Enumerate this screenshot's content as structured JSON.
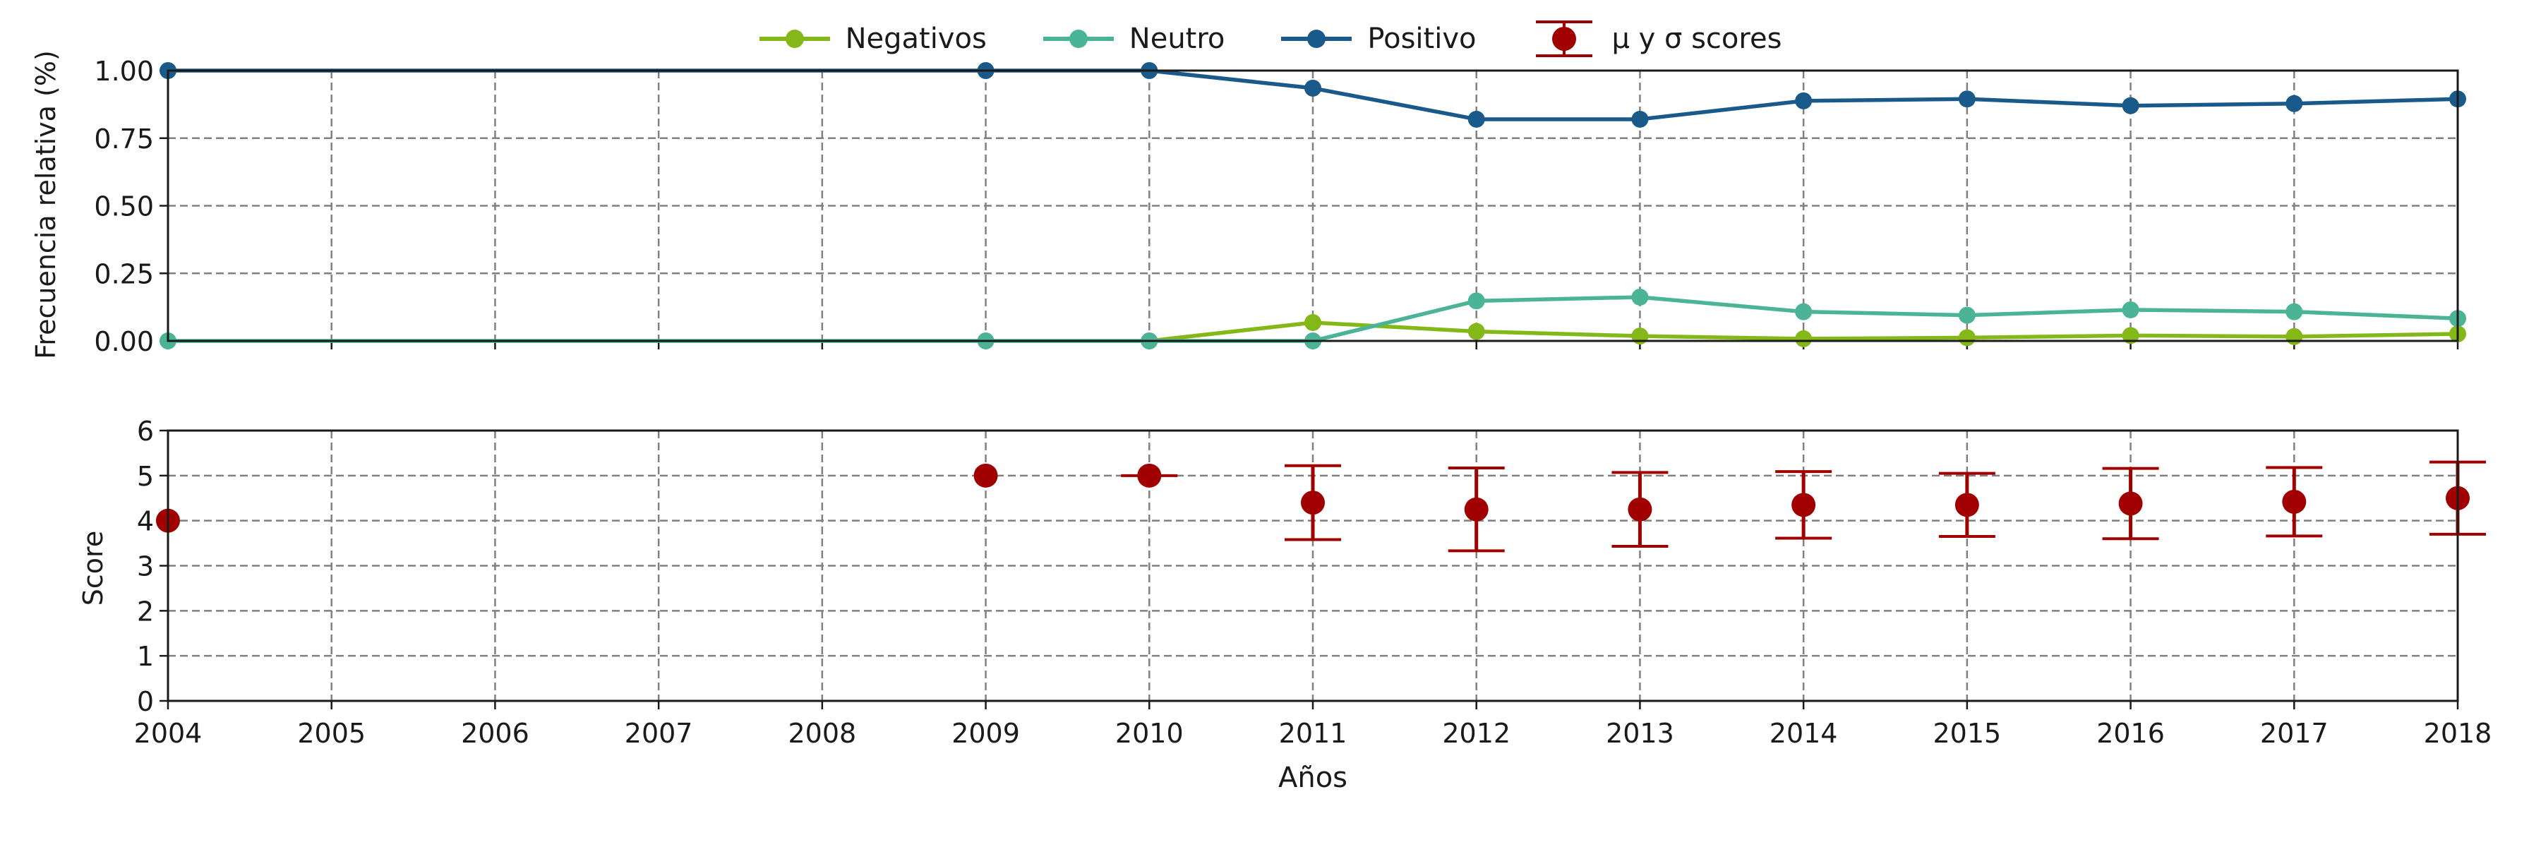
{
  "chart_data": [
    {
      "type": "line",
      "ylabel": "Frecuencia relativa (%)",
      "xlim": [
        2004,
        2018
      ],
      "ylim": [
        0,
        1
      ],
      "yticks": [
        0,
        0.25,
        0.5,
        0.75,
        1
      ],
      "ytick_labels": [
        "0.00",
        "0.25",
        "0.50",
        "0.75",
        "1.00"
      ],
      "grid": true,
      "legend_position": "top-center",
      "series": [
        {
          "name": "Negativos",
          "color": "#84b818",
          "x": [
            2010,
            2011,
            2012,
            2013,
            2014,
            2015,
            2016,
            2017,
            2018
          ],
          "values": [
            0.0,
            0.068,
            0.035,
            0.018,
            0.008,
            0.012,
            0.02,
            0.016,
            0.026
          ]
        },
        {
          "name": "Neutro",
          "color": "#4bb496",
          "x": [
            2004,
            2009,
            2010,
            2011,
            2012,
            2013,
            2014,
            2015,
            2016,
            2017,
            2018
          ],
          "values": [
            0.0,
            0.0,
            0.0,
            0.0,
            0.148,
            0.162,
            0.108,
            0.095,
            0.115,
            0.108,
            0.083
          ]
        },
        {
          "name": "Positivo",
          "color": "#1a5a8a",
          "x": [
            2004,
            2009,
            2010,
            2011,
            2012,
            2013,
            2014,
            2015,
            2016,
            2017,
            2018
          ],
          "values": [
            1.0,
            1.0,
            1.0,
            0.935,
            0.82,
            0.82,
            0.888,
            0.895,
            0.87,
            0.878,
            0.895
          ]
        }
      ]
    },
    {
      "type": "scatter",
      "xlabel": "Años",
      "ylabel": "Score",
      "xlim": [
        2004,
        2018
      ],
      "ylim": [
        0,
        6
      ],
      "yticks": [
        0,
        1,
        2,
        3,
        4,
        5,
        6
      ],
      "ytick_labels": [
        "0",
        "1",
        "2",
        "3",
        "4",
        "5",
        "6"
      ],
      "xticks": [
        2004,
        2005,
        2006,
        2007,
        2008,
        2009,
        2010,
        2011,
        2012,
        2013,
        2014,
        2015,
        2016,
        2017,
        2018
      ],
      "xtick_labels": [
        "2004",
        "2005",
        "2006",
        "2007",
        "2008",
        "2009",
        "2010",
        "2011",
        "2012",
        "2013",
        "2014",
        "2015",
        "2016",
        "2017",
        "2018"
      ],
      "grid": true,
      "series": [
        {
          "name": "μ y σ scores",
          "color": "#a00000",
          "x": [
            2004,
            2009,
            2010,
            2011,
            2012,
            2013,
            2014,
            2015,
            2016,
            2017,
            2018
          ],
          "values": [
            4.0,
            5.0,
            5.0,
            4.4,
            4.25,
            4.25,
            4.35,
            4.35,
            4.38,
            4.42,
            4.5
          ],
          "errors": [
            0.0,
            0.0,
            0.0,
            0.82,
            0.92,
            0.82,
            0.74,
            0.7,
            0.78,
            0.76,
            0.8
          ]
        }
      ]
    }
  ]
}
